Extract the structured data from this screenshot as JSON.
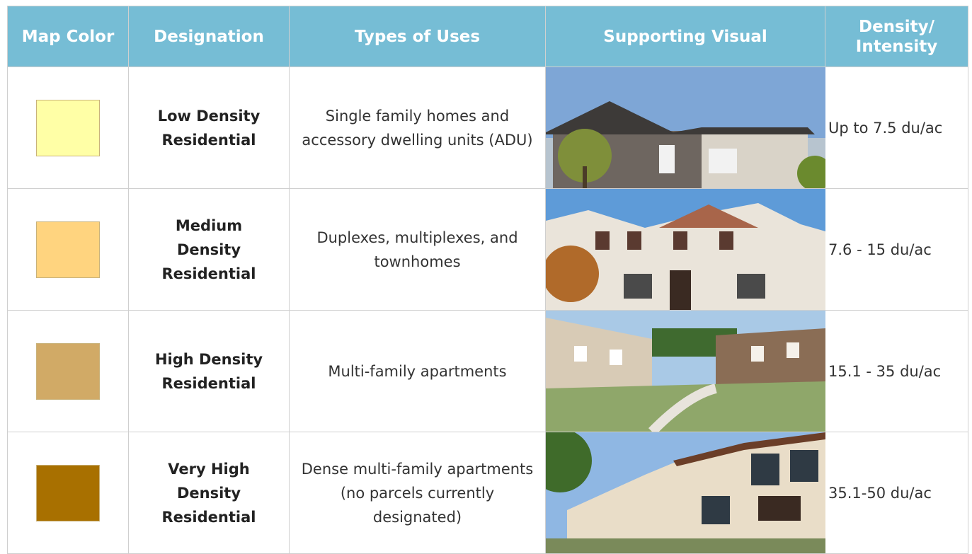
{
  "table": {
    "header": [
      "Map Color",
      "Designation",
      "Types of Uses",
      "Supporting Visual",
      "Density/ Intensity"
    ],
    "rows": [
      {
        "color": "#ffffa6",
        "designation": "Low Density Residential",
        "uses": "Single family homes and accessory dwelling units (ADU)",
        "density": "Up to 7.5 du/ac"
      },
      {
        "color": "#ffd47f",
        "designation": "Medium Density Residential",
        "uses": "Duplexes, multiplexes, and townhomes",
        "density": "7.6 - 15 du/ac"
      },
      {
        "color": "#d1aa66",
        "designation": "High Density Residential",
        "uses": "Multi-family apartments",
        "density": "15.1 - 35 du/ac"
      },
      {
        "color": "#a87000",
        "designation": "Very High Density Residential",
        "uses": "Dense multi-family apartments (no parcels currently designated)",
        "density": "35.1-50 du/ac"
      }
    ]
  }
}
